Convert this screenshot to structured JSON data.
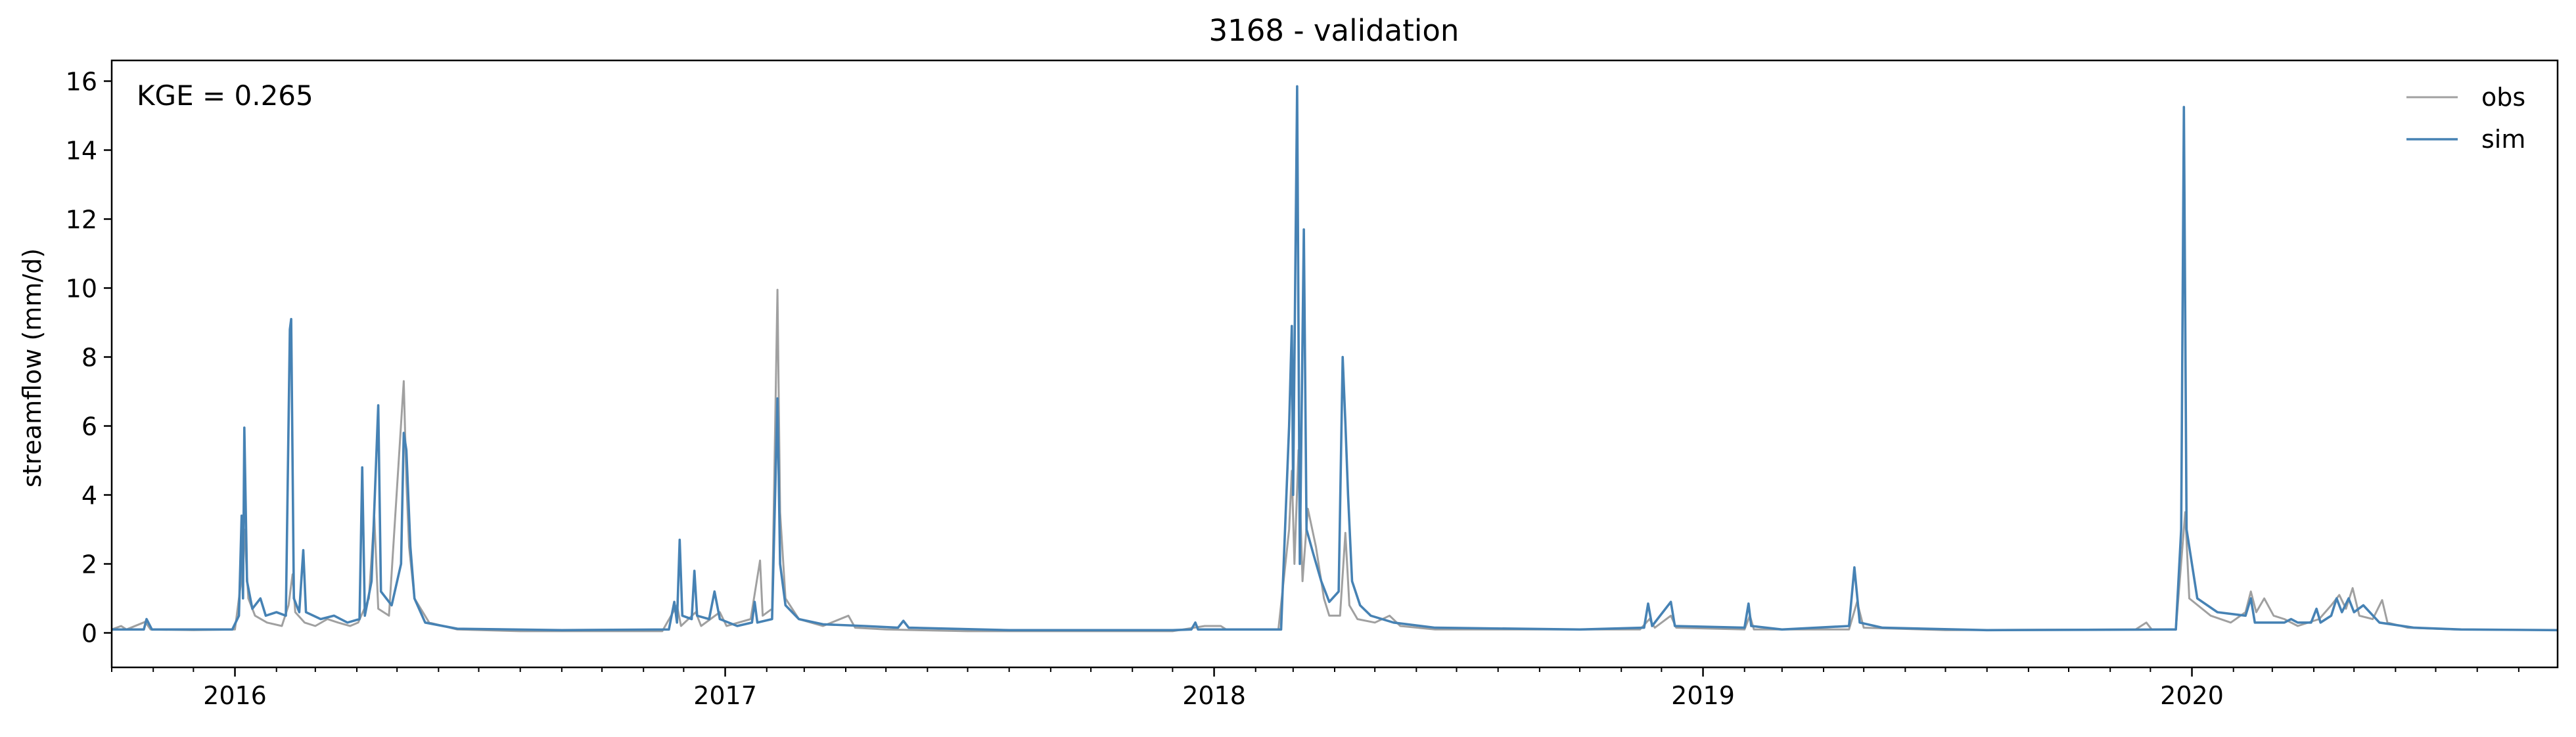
{
  "chart_data": {
    "type": "line",
    "title": "3168 - validation",
    "xlabel": "",
    "ylabel": "streamflow (mm/d)",
    "annotation": "KGE = 0.265",
    "legend_position": "top-right",
    "grid": false,
    "xlim": [
      "2015-10-01",
      "2020-09-30"
    ],
    "ylim": [
      -1,
      16.6
    ],
    "x_ticks": [
      {
        "date": "2016-01-01",
        "label": "2016"
      },
      {
        "date": "2017-01-01",
        "label": "2017"
      },
      {
        "date": "2018-01-01",
        "label": "2018"
      },
      {
        "date": "2019-01-01",
        "label": "2019"
      },
      {
        "date": "2020-01-01",
        "label": "2020"
      }
    ],
    "y_ticks": [
      0,
      2,
      4,
      6,
      8,
      10,
      12,
      14,
      16
    ],
    "series": [
      {
        "name": "obs",
        "color": "#a0a0a0",
        "points": [
          [
            "2015-10-01",
            0.1
          ],
          [
            "2015-10-08",
            0.2
          ],
          [
            "2015-10-12",
            0.1
          ],
          [
            "2015-10-26",
            0.32
          ],
          [
            "2015-10-30",
            0.1
          ],
          [
            "2015-12-01",
            0.08
          ],
          [
            "2016-01-01",
            0.1
          ],
          [
            "2016-01-06",
            1.6
          ],
          [
            "2016-01-08",
            3.0
          ],
          [
            "2016-01-11",
            1.0
          ],
          [
            "2016-01-16",
            0.5
          ],
          [
            "2016-01-25",
            0.3
          ],
          [
            "2016-02-05",
            0.2
          ],
          [
            "2016-02-10",
            0.8
          ],
          [
            "2016-02-13",
            1.7
          ],
          [
            "2016-02-15",
            0.6
          ],
          [
            "2016-02-22",
            0.3
          ],
          [
            "2016-03-01",
            0.2
          ],
          [
            "2016-03-10",
            0.4
          ],
          [
            "2016-03-18",
            0.3
          ],
          [
            "2016-03-27",
            0.2
          ],
          [
            "2016-04-02",
            0.3
          ],
          [
            "2016-04-10",
            1.0
          ],
          [
            "2016-04-14",
            3.4
          ],
          [
            "2016-04-17",
            0.7
          ],
          [
            "2016-04-25",
            0.5
          ],
          [
            "2016-05-06",
            7.3
          ],
          [
            "2016-05-08",
            4.4
          ],
          [
            "2016-05-10",
            2.5
          ],
          [
            "2016-05-14",
            1.0
          ],
          [
            "2016-05-25",
            0.3
          ],
          [
            "2016-06-15",
            0.1
          ],
          [
            "2016-08-01",
            0.05
          ],
          [
            "2016-10-01",
            0.05
          ],
          [
            "2016-11-15",
            0.05
          ],
          [
            "2016-11-26",
            0.8
          ],
          [
            "2016-11-29",
            0.2
          ],
          [
            "2016-12-10",
            0.6
          ],
          [
            "2016-12-14",
            0.2
          ],
          [
            "2016-12-28",
            0.6
          ],
          [
            "2017-01-02",
            0.2
          ],
          [
            "2017-01-20",
            0.4
          ],
          [
            "2017-01-27",
            2.1
          ],
          [
            "2017-01-29",
            0.5
          ],
          [
            "2017-02-05",
            0.7
          ],
          [
            "2017-02-09",
            9.95
          ],
          [
            "2017-02-11",
            3.5
          ],
          [
            "2017-02-15",
            1.0
          ],
          [
            "2017-02-25",
            0.4
          ],
          [
            "2017-03-15",
            0.2
          ],
          [
            "2017-04-03",
            0.5
          ],
          [
            "2017-04-08",
            0.15
          ],
          [
            "2017-05-01",
            0.1
          ],
          [
            "2017-07-01",
            0.05
          ],
          [
            "2017-12-01",
            0.05
          ],
          [
            "2017-12-25",
            0.2
          ],
          [
            "2018-01-06",
            0.2
          ],
          [
            "2018-01-10",
            0.1
          ],
          [
            "2018-02-18",
            0.1
          ],
          [
            "2018-02-26",
            3.0
          ],
          [
            "2018-02-28",
            4.7
          ],
          [
            "2018-03-02",
            2.0
          ],
          [
            "2018-03-05",
            5.3
          ],
          [
            "2018-03-08",
            1.5
          ],
          [
            "2018-03-12",
            3.6
          ],
          [
            "2018-03-18",
            2.5
          ],
          [
            "2018-03-24",
            1.0
          ],
          [
            "2018-03-28",
            0.5
          ],
          [
            "2018-04-05",
            0.5
          ],
          [
            "2018-04-09",
            2.9
          ],
          [
            "2018-04-12",
            0.8
          ],
          [
            "2018-04-18",
            0.4
          ],
          [
            "2018-05-01",
            0.3
          ],
          [
            "2018-05-12",
            0.5
          ],
          [
            "2018-05-20",
            0.2
          ],
          [
            "2018-06-15",
            0.1
          ],
          [
            "2018-10-01",
            0.1
          ],
          [
            "2018-11-15",
            0.1
          ],
          [
            "2018-11-22",
            0.4
          ],
          [
            "2018-11-26",
            0.15
          ],
          [
            "2018-12-08",
            0.5
          ],
          [
            "2018-12-12",
            0.15
          ],
          [
            "2019-02-01",
            0.1
          ],
          [
            "2019-02-05",
            0.5
          ],
          [
            "2019-02-08",
            0.1
          ],
          [
            "2019-03-01",
            0.1
          ],
          [
            "2019-04-20",
            0.1
          ],
          [
            "2019-04-26",
            0.9
          ],
          [
            "2019-05-01",
            0.15
          ],
          [
            "2019-07-01",
            0.08
          ],
          [
            "2019-11-20",
            0.1
          ],
          [
            "2019-11-28",
            0.3
          ],
          [
            "2019-12-02",
            0.1
          ],
          [
            "2019-12-20",
            0.1
          ],
          [
            "2019-12-27",
            3.5
          ],
          [
            "2019-12-30",
            1.0
          ],
          [
            "2020-01-15",
            0.5
          ],
          [
            "2020-01-30",
            0.3
          ],
          [
            "2020-02-10",
            0.6
          ],
          [
            "2020-02-14",
            1.2
          ],
          [
            "2020-02-18",
            0.6
          ],
          [
            "2020-02-24",
            1.0
          ],
          [
            "2020-03-02",
            0.5
          ],
          [
            "2020-03-10",
            0.4
          ],
          [
            "2020-03-20",
            0.2
          ],
          [
            "2020-04-05",
            0.4
          ],
          [
            "2020-04-14",
            0.8
          ],
          [
            "2020-04-20",
            1.1
          ],
          [
            "2020-04-25",
            0.7
          ],
          [
            "2020-04-30",
            1.3
          ],
          [
            "2020-05-05",
            0.5
          ],
          [
            "2020-05-15",
            0.4
          ],
          [
            "2020-05-22",
            0.95
          ],
          [
            "2020-05-26",
            0.3
          ],
          [
            "2020-06-10",
            0.15
          ],
          [
            "2020-07-15",
            0.1
          ],
          [
            "2020-09-30",
            0.08
          ]
        ]
      },
      {
        "name": "sim",
        "color": "#4682b4",
        "points": [
          [
            "2015-10-01",
            0.1
          ],
          [
            "2015-10-25",
            0.1
          ],
          [
            "2015-10-27",
            0.4
          ],
          [
            "2015-10-31",
            0.1
          ],
          [
            "2015-12-30",
            0.1
          ],
          [
            "2016-01-04",
            0.5
          ],
          [
            "2016-01-06",
            3.4
          ],
          [
            "2016-01-07",
            1.0
          ],
          [
            "2016-01-08",
            5.95
          ],
          [
            "2016-01-10",
            1.5
          ],
          [
            "2016-01-14",
            0.7
          ],
          [
            "2016-01-20",
            1.0
          ],
          [
            "2016-01-24",
            0.5
          ],
          [
            "2016-02-01",
            0.6
          ],
          [
            "2016-02-08",
            0.5
          ],
          [
            "2016-02-11",
            8.8
          ],
          [
            "2016-02-12",
            9.1
          ],
          [
            "2016-02-14",
            1.0
          ],
          [
            "2016-02-18",
            0.6
          ],
          [
            "2016-02-21",
            2.4
          ],
          [
            "2016-02-23",
            0.6
          ],
          [
            "2016-03-05",
            0.4
          ],
          [
            "2016-03-15",
            0.5
          ],
          [
            "2016-03-25",
            0.3
          ],
          [
            "2016-04-03",
            0.4
          ],
          [
            "2016-04-05",
            4.8
          ],
          [
            "2016-04-07",
            0.5
          ],
          [
            "2016-04-12",
            1.5
          ],
          [
            "2016-04-17",
            6.6
          ],
          [
            "2016-04-19",
            1.2
          ],
          [
            "2016-04-27",
            0.8
          ],
          [
            "2016-05-04",
            2.0
          ],
          [
            "2016-05-06",
            5.8
          ],
          [
            "2016-05-08",
            5.3
          ],
          [
            "2016-05-11",
            2.5
          ],
          [
            "2016-05-14",
            1.0
          ],
          [
            "2016-05-22",
            0.3
          ],
          [
            "2016-06-15",
            0.12
          ],
          [
            "2016-09-01",
            0.08
          ],
          [
            "2016-11-20",
            0.1
          ],
          [
            "2016-11-24",
            0.9
          ],
          [
            "2016-11-26",
            0.3
          ],
          [
            "2016-11-28",
            2.7
          ],
          [
            "2016-11-30",
            0.5
          ],
          [
            "2016-12-07",
            0.4
          ],
          [
            "2016-12-09",
            1.8
          ],
          [
            "2016-12-11",
            0.5
          ],
          [
            "2016-12-20",
            0.4
          ],
          [
            "2016-12-24",
            1.2
          ],
          [
            "2016-12-28",
            0.4
          ],
          [
            "2017-01-10",
            0.2
          ],
          [
            "2017-01-21",
            0.3
          ],
          [
            "2017-01-23",
            0.9
          ],
          [
            "2017-01-25",
            0.3
          ],
          [
            "2017-02-05",
            0.4
          ],
          [
            "2017-02-09",
            6.8
          ],
          [
            "2017-02-11",
            2.0
          ],
          [
            "2017-02-15",
            0.8
          ],
          [
            "2017-02-25",
            0.4
          ],
          [
            "2017-03-15",
            0.25
          ],
          [
            "2017-04-15",
            0.2
          ],
          [
            "2017-05-10",
            0.15
          ],
          [
            "2017-05-14",
            0.35
          ],
          [
            "2017-05-18",
            0.15
          ],
          [
            "2017-08-01",
            0.08
          ],
          [
            "2017-12-01",
            0.08
          ],
          [
            "2017-12-15",
            0.1
          ],
          [
            "2017-12-18",
            0.3
          ],
          [
            "2017-12-20",
            0.1
          ],
          [
            "2018-02-20",
            0.1
          ],
          [
            "2018-02-26",
            6.0
          ],
          [
            "2018-02-28",
            8.9
          ],
          [
            "2018-03-01",
            4.0
          ],
          [
            "2018-03-04",
            15.85
          ],
          [
            "2018-03-06",
            2.0
          ],
          [
            "2018-03-09",
            11.7
          ],
          [
            "2018-03-11",
            3.0
          ],
          [
            "2018-03-16",
            2.3
          ],
          [
            "2018-03-22",
            1.5
          ],
          [
            "2018-03-28",
            0.9
          ],
          [
            "2018-04-04",
            1.2
          ],
          [
            "2018-04-07",
            8.0
          ],
          [
            "2018-04-09",
            6.1
          ],
          [
            "2018-04-11",
            4.0
          ],
          [
            "2018-04-14",
            1.5
          ],
          [
            "2018-04-20",
            0.8
          ],
          [
            "2018-04-28",
            0.5
          ],
          [
            "2018-05-15",
            0.3
          ],
          [
            "2018-06-15",
            0.15
          ],
          [
            "2018-10-01",
            0.1
          ],
          [
            "2018-11-18",
            0.15
          ],
          [
            "2018-11-21",
            0.85
          ],
          [
            "2018-11-24",
            0.2
          ],
          [
            "2018-12-08",
            0.9
          ],
          [
            "2018-12-11",
            0.2
          ],
          [
            "2019-02-01",
            0.15
          ],
          [
            "2019-02-04",
            0.85
          ],
          [
            "2019-02-06",
            0.2
          ],
          [
            "2019-03-01",
            0.1
          ],
          [
            "2019-04-20",
            0.2
          ],
          [
            "2019-04-24",
            1.9
          ],
          [
            "2019-04-28",
            0.3
          ],
          [
            "2019-05-15",
            0.15
          ],
          [
            "2019-08-01",
            0.08
          ],
          [
            "2019-12-20",
            0.1
          ],
          [
            "2019-12-24",
            3.0
          ],
          [
            "2019-12-26",
            15.25
          ],
          [
            "2019-12-28",
            3.0
          ],
          [
            "2020-01-05",
            1.0
          ],
          [
            "2020-01-20",
            0.6
          ],
          [
            "2020-02-10",
            0.5
          ],
          [
            "2020-02-14",
            1.0
          ],
          [
            "2020-02-17",
            0.3
          ],
          [
            "2020-03-10",
            0.3
          ],
          [
            "2020-03-15",
            0.4
          ],
          [
            "2020-03-20",
            0.3
          ],
          [
            "2020-03-30",
            0.3
          ],
          [
            "2020-04-03",
            0.7
          ],
          [
            "2020-04-06",
            0.3
          ],
          [
            "2020-04-14",
            0.5
          ],
          [
            "2020-04-18",
            1.0
          ],
          [
            "2020-04-22",
            0.6
          ],
          [
            "2020-04-27",
            1.0
          ],
          [
            "2020-05-01",
            0.6
          ],
          [
            "2020-05-08",
            0.8
          ],
          [
            "2020-05-20",
            0.3
          ],
          [
            "2020-06-15",
            0.15
          ],
          [
            "2020-07-20",
            0.1
          ],
          [
            "2020-09-30",
            0.08
          ]
        ]
      }
    ]
  }
}
